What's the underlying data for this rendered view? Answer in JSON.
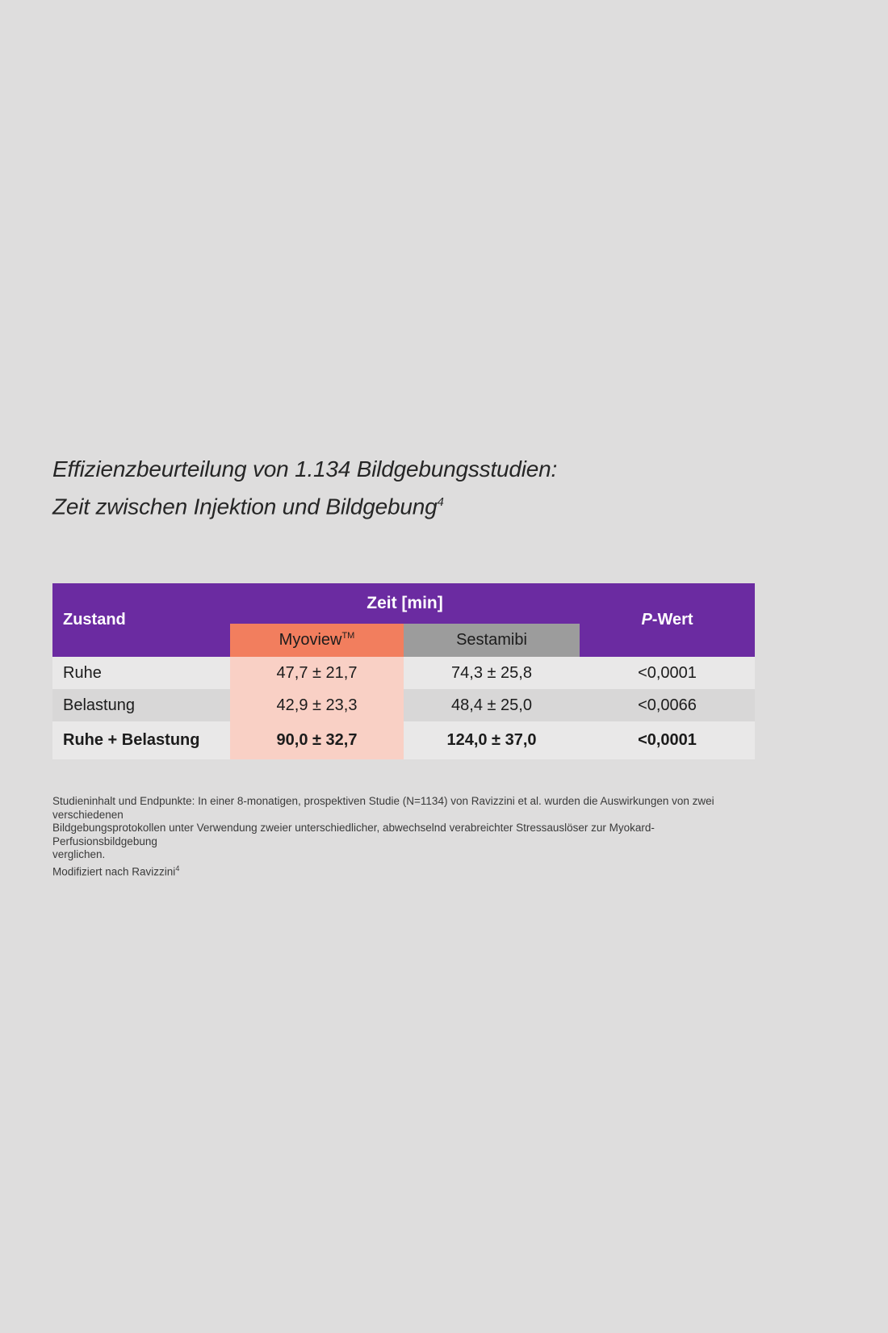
{
  "page": {
    "background": "#DEDDDD"
  },
  "title": {
    "line1": "Effizienzbeurteilung von 1.134 Bildgebungsstudien:",
    "line2": "Zeit zwischen Injektion und Bildgebung",
    "superscript": "4"
  },
  "table": {
    "colors": {
      "header_purple": "#6B2BA1",
      "myoview_orange": "#F27E5E",
      "myoview_pink": "#F9D0C5",
      "sestamibi_gray": "#9C9C9C",
      "row_light": "#E9E8E8",
      "row_dark": "#D8D7D7"
    },
    "header": {
      "zustand": "Zustand",
      "zeit": "Zeit [min]",
      "myoview": "Myoview",
      "myoview_tm": "TM",
      "sestamibi": "Sestamibi",
      "p_italic": "P",
      "p_rest": "-Wert"
    },
    "rows": [
      {
        "label": "Ruhe",
        "myoview": "47,7 ± 21,7",
        "sestamibi": "74,3 ± 25,8",
        "p": "<0,0001"
      },
      {
        "label": "Belastung",
        "myoview": "42,9 ± 23,3",
        "sestamibi": "48,4 ± 25,0",
        "p": "<0,0066"
      },
      {
        "label": "Ruhe + Belastung",
        "myoview": "90,0 ± 32,7",
        "sestamibi": "124,0 ± 37,0",
        "p": "<0,0001"
      }
    ]
  },
  "footnote": {
    "line1": "Studieninhalt und Endpunkte: In einer 8-monatigen, prospektiven Studie (N=1134) von Ravizzini et al. wurden die Auswirkungen von zwei verschiedenen",
    "line2": "Bildgebungsprotokollen unter Verwendung zweier unterschiedlicher, abwechselnd verabreichter Stressauslöser zur Myokard-Perfusionsbildgebung",
    "line3": "verglichen.",
    "line4": "Modifiziert nach Ravizzini",
    "superscript": "4"
  }
}
